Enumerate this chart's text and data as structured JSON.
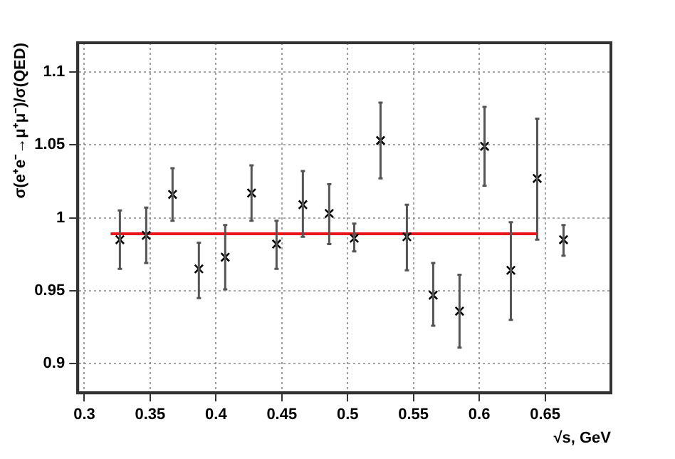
{
  "chart_data": {
    "type": "scatter",
    "xlabel": "√s, GeV",
    "ylabel": "σ(e⁺e⁻→μ⁺μ⁻)/σ(QED)",
    "xlim": [
      0.295,
      0.7
    ],
    "xticks": [
      0.3,
      0.35,
      0.4,
      0.45,
      0.5,
      0.55,
      0.6,
      0.65
    ],
    "ylim": [
      0.88,
      1.12
    ],
    "yticks": [
      0.9,
      0.95,
      1,
      1.05,
      1.1
    ],
    "grid": true,
    "legend": false,
    "marker": "cross",
    "series": [
      {
        "color": "#000000",
        "x": [
          0.327,
          0.347,
          0.367,
          0.387,
          0.407,
          0.427,
          0.446,
          0.466,
          0.486,
          0.505,
          0.525,
          0.545,
          0.565,
          0.585,
          0.604,
          0.624,
          0.644,
          0.664
        ],
        "values": [
          0.985,
          0.988,
          1.016,
          0.965,
          0.973,
          1.017,
          0.982,
          1.009,
          1.003,
          0.986,
          1.053,
          0.987,
          0.947,
          0.936,
          1.049,
          0.964,
          1.027,
          0.985
        ],
        "errors": [
          [
            0.965,
            1.005
          ],
          [
            0.969,
            1.007
          ],
          [
            0.998,
            1.034
          ],
          [
            0.945,
            0.983
          ],
          [
            0.951,
            0.995
          ],
          [
            0.998,
            1.036
          ],
          [
            0.965,
            0.998
          ],
          [
            0.987,
            1.032
          ],
          [
            0.982,
            1.023
          ],
          [
            0.977,
            0.996
          ],
          [
            1.027,
            1.079
          ],
          [
            0.964,
            1.009
          ],
          [
            0.926,
            0.969
          ],
          [
            0.911,
            0.961
          ],
          [
            1.022,
            1.076
          ],
          [
            0.93,
            0.997
          ],
          [
            0.985,
            1.068
          ],
          [
            0.974,
            0.995
          ]
        ]
      },
      {
        "type": "line",
        "color": "#e8161b",
        "marker": "none",
        "x": [
          0.32,
          0.644
        ],
        "values": [
          0.989,
          0.989
        ]
      }
    ]
  }
}
